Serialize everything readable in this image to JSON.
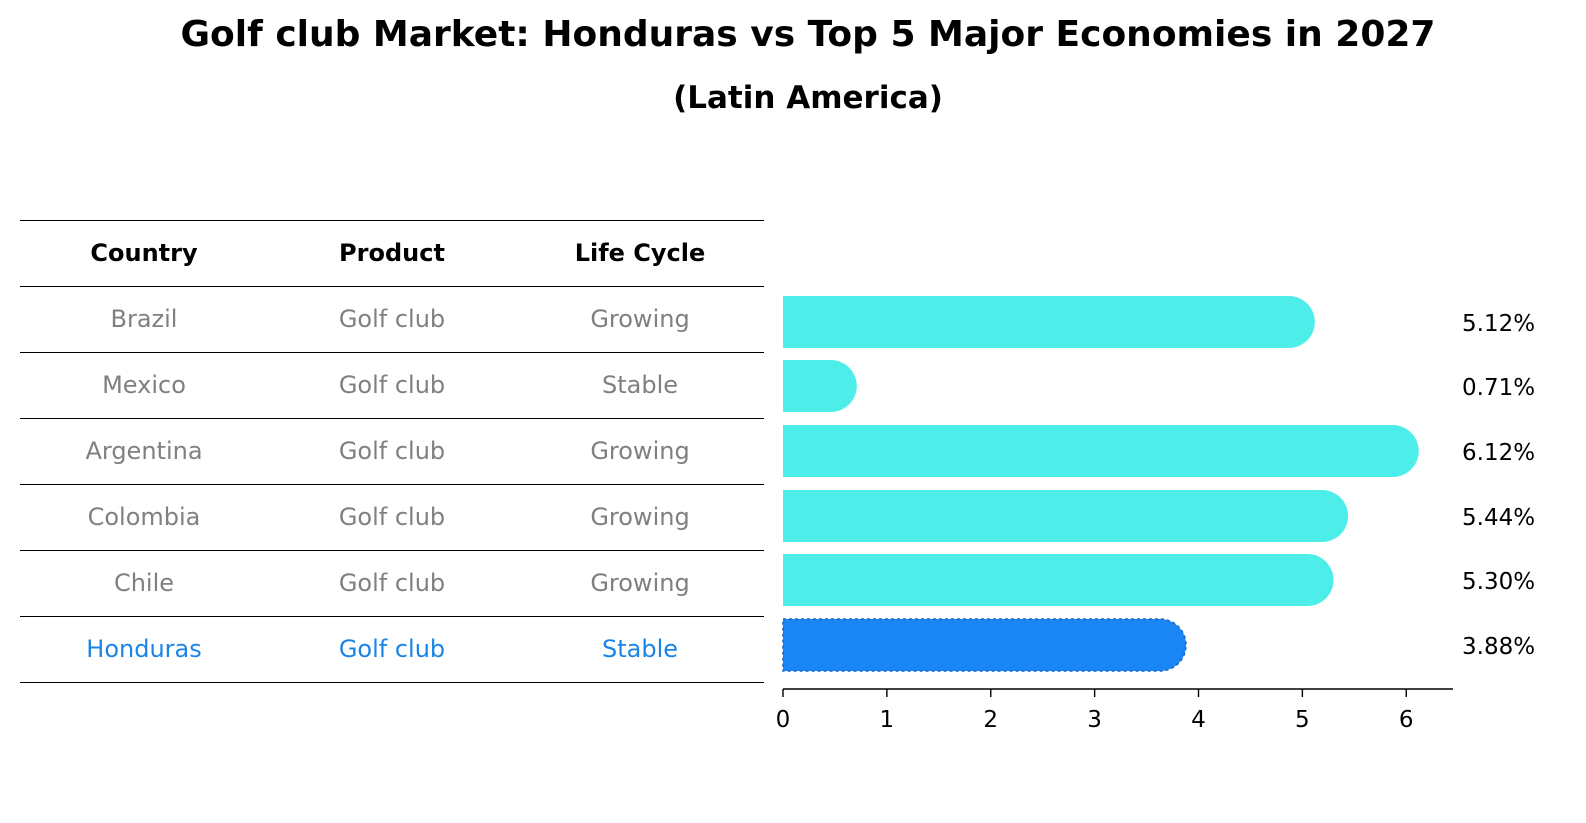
{
  "title": "Golf club Market: Honduras vs Top 5 Major Economies in 2027",
  "subtitle": "(Latin America)",
  "table": {
    "headers": [
      "Country",
      "Product",
      "Life Cycle"
    ],
    "rows": [
      {
        "country": "Brazil",
        "product": "Golf club",
        "life_cycle": "Growing"
      },
      {
        "country": "Mexico",
        "product": "Golf club",
        "life_cycle": "Stable"
      },
      {
        "country": "Argentina",
        "product": "Golf club",
        "life_cycle": "Growing"
      },
      {
        "country": "Colombia",
        "product": "Golf club",
        "life_cycle": "Growing"
      },
      {
        "country": "Chile",
        "product": "Golf club",
        "life_cycle": "Growing"
      },
      {
        "country": "Honduras",
        "product": "Golf club",
        "life_cycle": "Stable"
      }
    ],
    "text_color": "#808080",
    "highlight_color": "#1a85e8"
  },
  "chart_data": {
    "type": "bar",
    "orientation": "horizontal",
    "categories": [
      "Brazil",
      "Mexico",
      "Argentina",
      "Colombia",
      "Chile",
      "Honduras"
    ],
    "values": [
      5.12,
      0.71,
      6.12,
      5.44,
      5.3,
      3.88
    ],
    "labels": [
      "5.12%",
      "0.71%",
      "6.12%",
      "5.44%",
      "5.30%",
      "3.88%"
    ],
    "highlight": "Honduras",
    "xlim": [
      0,
      6.45
    ],
    "xticks": [
      "0",
      "1",
      "2",
      "3",
      "4",
      "5",
      "6"
    ],
    "colors": {
      "default": "#4deeea",
      "highlight": "#1a85f5"
    },
    "grid": false
  }
}
